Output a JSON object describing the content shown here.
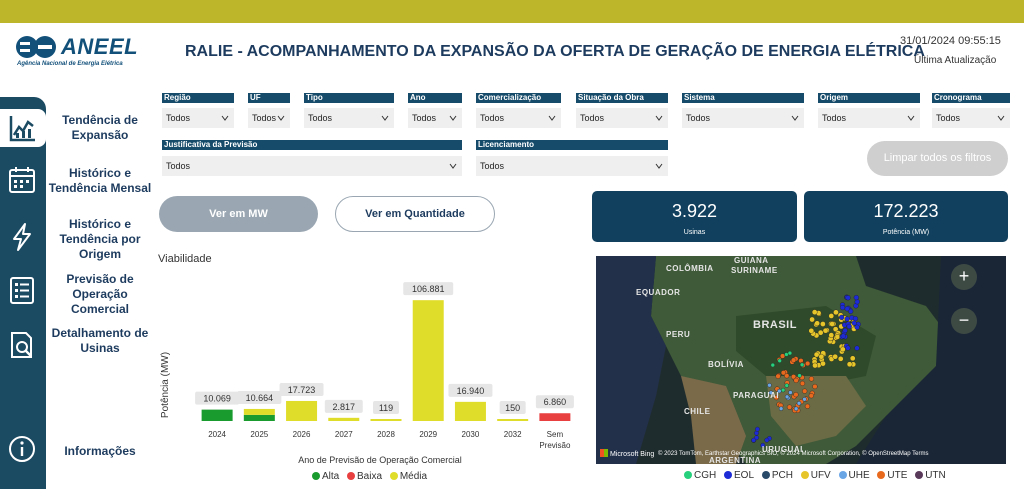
{
  "header": {
    "logo_text": "ANEEL",
    "logo_sub": "Agência Nacional de Energia Elétrica",
    "title": "RALIE - ACOMPANHAMENTO DA EXPANSÃO DA OFERTA DE GERAÇÃO DE ENERGIA ELÉTRICA",
    "datetime": "31/01/2024 09:55:15",
    "updated_label": "Última Atualização"
  },
  "nav": [
    {
      "label": "Tendência de Expansão",
      "icon": "line-chart-icon"
    },
    {
      "label": "Histórico e Tendência Mensal",
      "icon": "calendar-icon"
    },
    {
      "label": "Histórico e Tendência por Origem",
      "icon": "lightning-icon"
    },
    {
      "label": "Previsão de Operação Comercial",
      "icon": "list-icon"
    },
    {
      "label": "Detalhamento de Usinas",
      "icon": "document-search-icon"
    },
    {
      "label": "Informações",
      "icon": "info-icon"
    }
  ],
  "filters": {
    "regiao": {
      "label": "Região",
      "value": "Todos"
    },
    "uf": {
      "label": "UF",
      "value": "Todos"
    },
    "tipo": {
      "label": "Tipo",
      "value": "Todos"
    },
    "ano": {
      "label": "Ano",
      "value": "Todos"
    },
    "comercializacao": {
      "label": "Comercialização",
      "value": "Todos"
    },
    "situacao": {
      "label": "Situação da Obra",
      "value": "Todos"
    },
    "sistema": {
      "label": "Sistema",
      "value": "Todos"
    },
    "origem": {
      "label": "Origem",
      "value": "Todos"
    },
    "cronograma": {
      "label": "Cronograma",
      "value": "Todos"
    },
    "justificativa": {
      "label": "Justificativa da Previsão",
      "value": "Todos"
    },
    "licenciamento": {
      "label": "Licenciamento",
      "value": "Todos"
    }
  },
  "buttons": {
    "clear": "Limpar todos os filtros",
    "mw": "Ver em MW",
    "qty": "Ver em Quantidade"
  },
  "kpis": {
    "usinas": {
      "value": "3.922",
      "label": "Usinas"
    },
    "potencia": {
      "value": "172.223",
      "label": "Potência (MW)"
    }
  },
  "chart_data": {
    "type": "bar",
    "title": "Viabilidade",
    "xlabel": "Ano de Previsão de Operação Comercial",
    "ylabel": "Potência (MW)",
    "categories": [
      "2024",
      "2025",
      "2026",
      "2027",
      "2028",
      "2029",
      "2030",
      "2032",
      "Sem Previsão"
    ],
    "totals": [
      "10.069",
      "10.664",
      "17.723",
      "2.817",
      "119",
      "106.881",
      "16.940",
      "150",
      "6.860"
    ],
    "series": [
      {
        "name": "Alta",
        "color": "#1a9b2e",
        "values": [
          10069,
          5400,
          0,
          0,
          0,
          0,
          0,
          0,
          0
        ]
      },
      {
        "name": "Baixa",
        "color": "#e84040",
        "values": [
          0,
          0,
          0,
          0,
          0,
          0,
          0,
          0,
          6860
        ]
      },
      {
        "name": "Média",
        "color": "#e0dc2a",
        "values": [
          0,
          5264,
          17723,
          2817,
          119,
          106881,
          16940,
          150,
          0
        ]
      }
    ],
    "ylim": [
      0,
      115000
    ]
  },
  "map": {
    "labels": [
      "COLÔMBIA",
      "GUIANA",
      "SURINAME",
      "EQUADOR",
      "PERU",
      "BRASIL",
      "BOLÍVIA",
      "PARAGUAI",
      "CHILE",
      "URUGUAI",
      "ARGENTINA"
    ],
    "attribution": "© 2023 TomTom, Earthstar Geographics SIO, © 2024 Microsoft Corporation, © OpenStreetMap  Terms",
    "bing_label": "Microsoft Bing",
    "zoom_in": "+",
    "zoom_out": "−",
    "legend": [
      {
        "name": "CGH",
        "color": "#26d07c"
      },
      {
        "name": "EOL",
        "color": "#1d2bd6"
      },
      {
        "name": "PCH",
        "color": "#2a4a6a"
      },
      {
        "name": "UFV",
        "color": "#e6c52a"
      },
      {
        "name": "UHE",
        "color": "#6aa6e6"
      },
      {
        "name": "UTE",
        "color": "#e86a1f"
      },
      {
        "name": "UTN",
        "color": "#5a3a5a"
      }
    ]
  }
}
